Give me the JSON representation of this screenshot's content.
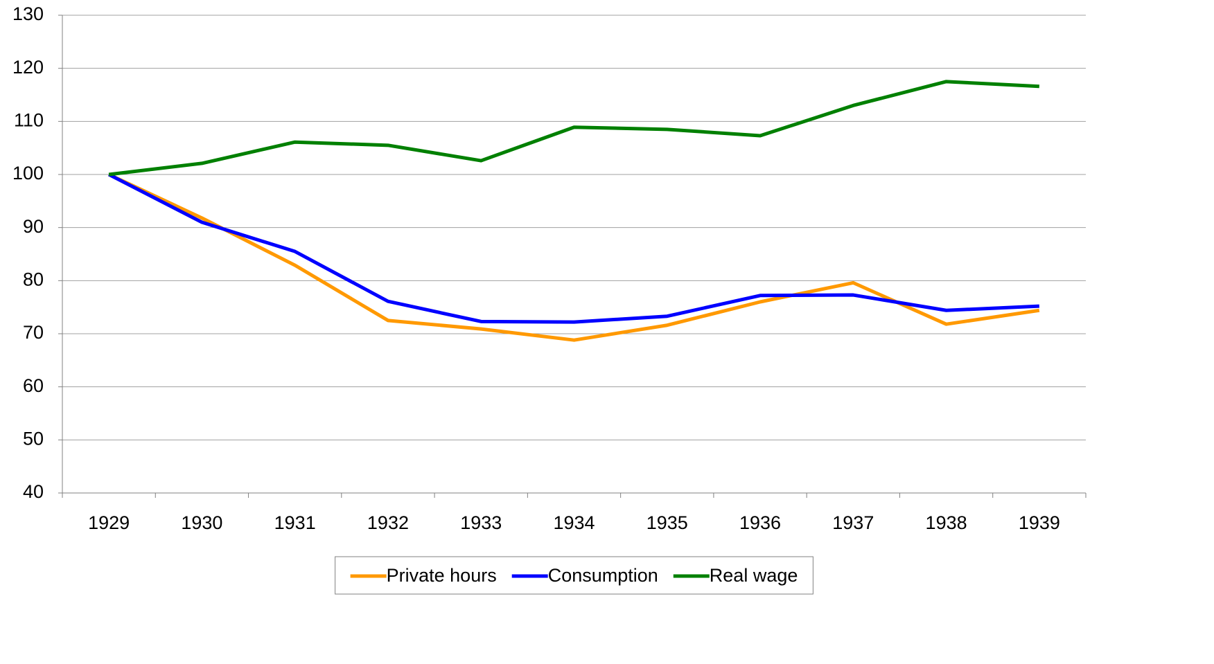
{
  "chart_data": {
    "type": "line",
    "categories": [
      "1929",
      "1930",
      "1931",
      "1932",
      "1933",
      "1934",
      "1935",
      "1936",
      "1937",
      "1938",
      "1939"
    ],
    "series": [
      {
        "name": "Private hours",
        "color": "#ff9900",
        "values": [
          100,
          91.8,
          82.9,
          72.5,
          70.9,
          68.8,
          71.6,
          76.0,
          79.6,
          71.8,
          74.4
        ]
      },
      {
        "name": "Consumption",
        "color": "#0000ff",
        "values": [
          100,
          91.0,
          85.5,
          76.1,
          72.3,
          72.2,
          73.3,
          77.2,
          77.3,
          74.4,
          75.2
        ]
      },
      {
        "name": "Real wage",
        "color": "#008000",
        "values": [
          100,
          102.1,
          106.1,
          105.5,
          102.6,
          108.9,
          108.5,
          107.3,
          113.0,
          117.5,
          116.6
        ]
      }
    ],
    "ylim": [
      40,
      130
    ],
    "yticks": [
      40,
      50,
      60,
      70,
      80,
      90,
      100,
      110,
      120,
      130
    ],
    "grid": true,
    "legend": "bottom"
  }
}
